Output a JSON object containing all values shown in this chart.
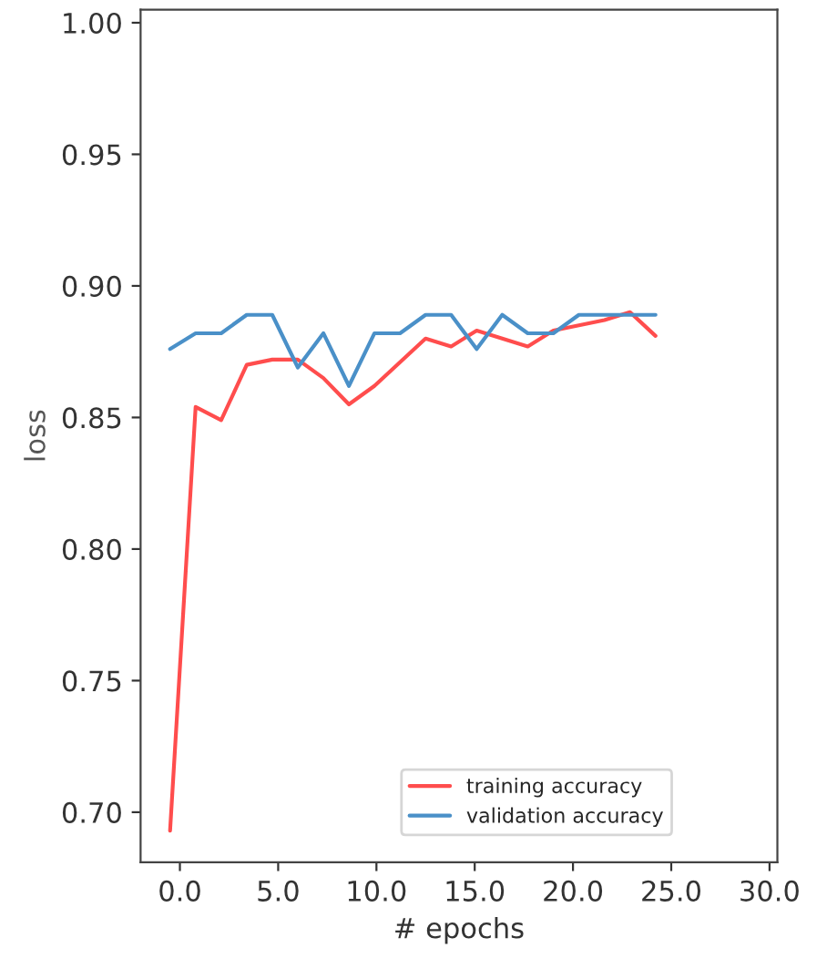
{
  "chart_data": {
    "type": "line",
    "xlabel": "# epochs",
    "ylabel": "loss",
    "x": [
      -0.5,
      0.8,
      2.1,
      3.4,
      4.7,
      6.0,
      7.3,
      8.6,
      9.9,
      11.2,
      12.5,
      13.8,
      15.1,
      16.4,
      17.7,
      19.0,
      20.3,
      21.6,
      22.9,
      24.2
    ],
    "series": [
      {
        "name": "training accuracy",
        "color": "#ff4d4d",
        "values": [
          0.693,
          0.854,
          0.849,
          0.87,
          0.872,
          0.872,
          0.865,
          0.855,
          0.862,
          0.871,
          0.88,
          0.877,
          0.883,
          0.88,
          0.877,
          0.883,
          0.885,
          0.887,
          0.89,
          0.881
        ]
      },
      {
        "name": "validation accuracy",
        "color": "#4a90c8",
        "values": [
          0.876,
          0.882,
          0.882,
          0.889,
          0.889,
          0.869,
          0.882,
          0.862,
          0.882,
          0.882,
          0.889,
          0.889,
          0.876,
          0.889,
          0.882,
          0.882,
          0.889,
          0.889,
          0.889,
          0.889
        ]
      }
    ],
    "xlim": [
      -2,
      30.4
    ],
    "ylim": [
      0.681,
      1.005
    ],
    "xticks": [
      {
        "value": 0,
        "label": "0.0"
      },
      {
        "value": 5,
        "label": "5.0"
      },
      {
        "value": 10,
        "label": "10.0"
      },
      {
        "value": 15,
        "label": "15.0"
      },
      {
        "value": 20,
        "label": "20.0"
      },
      {
        "value": 25,
        "label": "25.0"
      },
      {
        "value": 30,
        "label": "30.0"
      }
    ],
    "yticks": [
      {
        "value": 0.7,
        "label": "0.70"
      },
      {
        "value": 0.75,
        "label": "0.75"
      },
      {
        "value": 0.8,
        "label": "0.80"
      },
      {
        "value": 0.85,
        "label": "0.85"
      },
      {
        "value": 0.9,
        "label": "0.90"
      },
      {
        "value": 0.95,
        "label": "0.95"
      },
      {
        "value": 1.0,
        "label": "1.00"
      }
    ],
    "grid": false,
    "legend": "bottom right",
    "marker": "none",
    "line_style": "solid"
  }
}
